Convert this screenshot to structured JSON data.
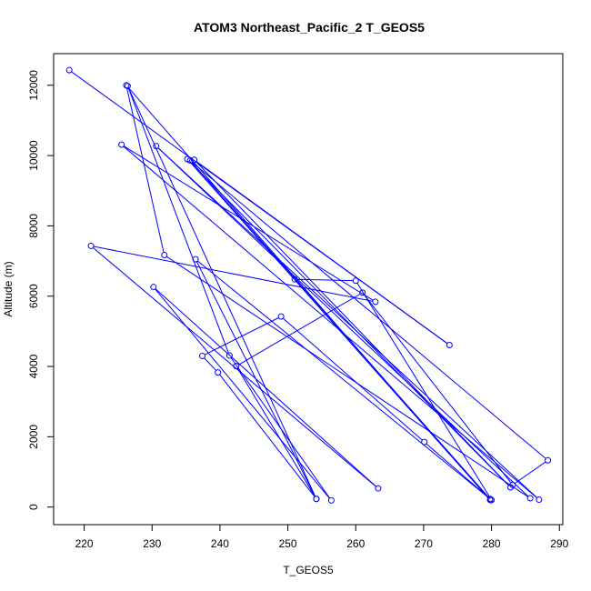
{
  "chart_data": {
    "type": "line",
    "title": "ATOM3 Northeast_Pacific_2 T_GEOS5",
    "xlabel": "T_GEOS5",
    "ylabel": "Altitude (m)",
    "xlim": [
      215.5,
      290.5
    ],
    "ylim": [
      -500,
      12900
    ],
    "x_ticks": [
      220,
      230,
      240,
      250,
      260,
      270,
      280,
      290
    ],
    "y_ticks": [
      0,
      2000,
      4000,
      6000,
      8000,
      10000,
      12000
    ],
    "grid": false,
    "legend": "none",
    "color": "#0000ff",
    "marker": "open-circle",
    "series": [
      {
        "x": [
          217.8,
          273.8,
          236.2,
          282.8,
          235.2,
          279.8,
          226.2,
          231.8,
          285.7,
          230.6,
          287.0,
          225.5,
          262.9,
          221.0,
          263.3,
          230.2,
          256.4,
          241.4,
          226.4,
          254.2,
          236.4,
          279.8,
          235.6,
          288.3,
          283.1,
          261.0,
          242.4,
          254.2,
          239.7,
          237.4,
          249.0,
          270.1,
          280.0,
          260.0,
          251.0
        ],
        "y": [
          12430,
          4610,
          9880,
          560,
          9900,
          200,
          12000,
          7170,
          250,
          10270,
          210,
          10310,
          5840,
          7430,
          530,
          6260,
          190,
          4310,
          11980,
          230,
          7050,
          230,
          9860,
          1330,
          630,
          6100,
          4010,
          230,
          3830,
          4300,
          5420,
          1850,
          200,
          6440,
          6480
        ]
      }
    ]
  }
}
